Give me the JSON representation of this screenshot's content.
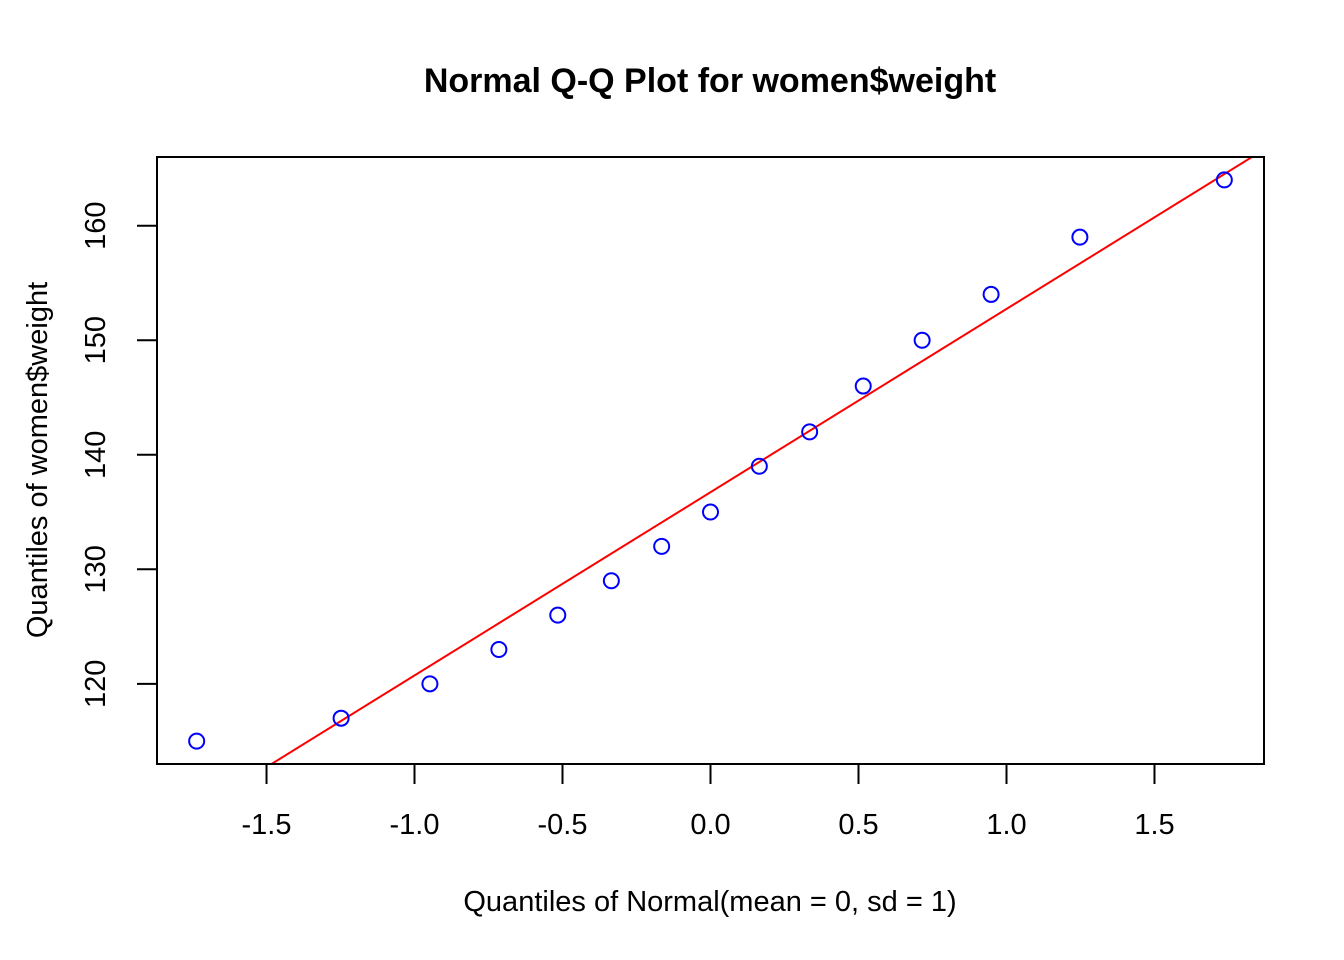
{
  "chart_data": {
    "type": "scatter",
    "title": "Normal Q-Q Plot for women$weight",
    "xlabel": "Quantiles of Normal(mean = 0, sd = 1)",
    "ylabel": "Quantiles of women$weight",
    "xlim": [
      -1.87,
      1.87
    ],
    "ylim": [
      113,
      166
    ],
    "x_ticks": [
      -1.5,
      -1.0,
      -0.5,
      0.0,
      0.5,
      1.0,
      1.5
    ],
    "x_tick_labels": [
      "-1.5",
      "-1.0",
      "-0.5",
      "0.0",
      "0.5",
      "1.0",
      "1.5"
    ],
    "y_ticks": [
      120,
      130,
      140,
      150,
      160
    ],
    "y_tick_labels": [
      "120",
      "130",
      "140",
      "150",
      "160"
    ],
    "points": {
      "color": "#0000ff",
      "x": [
        -1.736,
        -1.248,
        -0.948,
        -0.715,
        -0.516,
        -0.335,
        -0.165,
        0.0,
        0.165,
        0.335,
        0.516,
        0.715,
        0.948,
        1.248,
        1.736
      ],
      "y": [
        115,
        117,
        120,
        123,
        126,
        129,
        132,
        135,
        139,
        142,
        146,
        150,
        154,
        159,
        164
      ]
    },
    "reference_line": {
      "color": "#ff0000",
      "intercept": 136.73,
      "slope": 16.0
    },
    "grid": false,
    "legend": "none"
  }
}
